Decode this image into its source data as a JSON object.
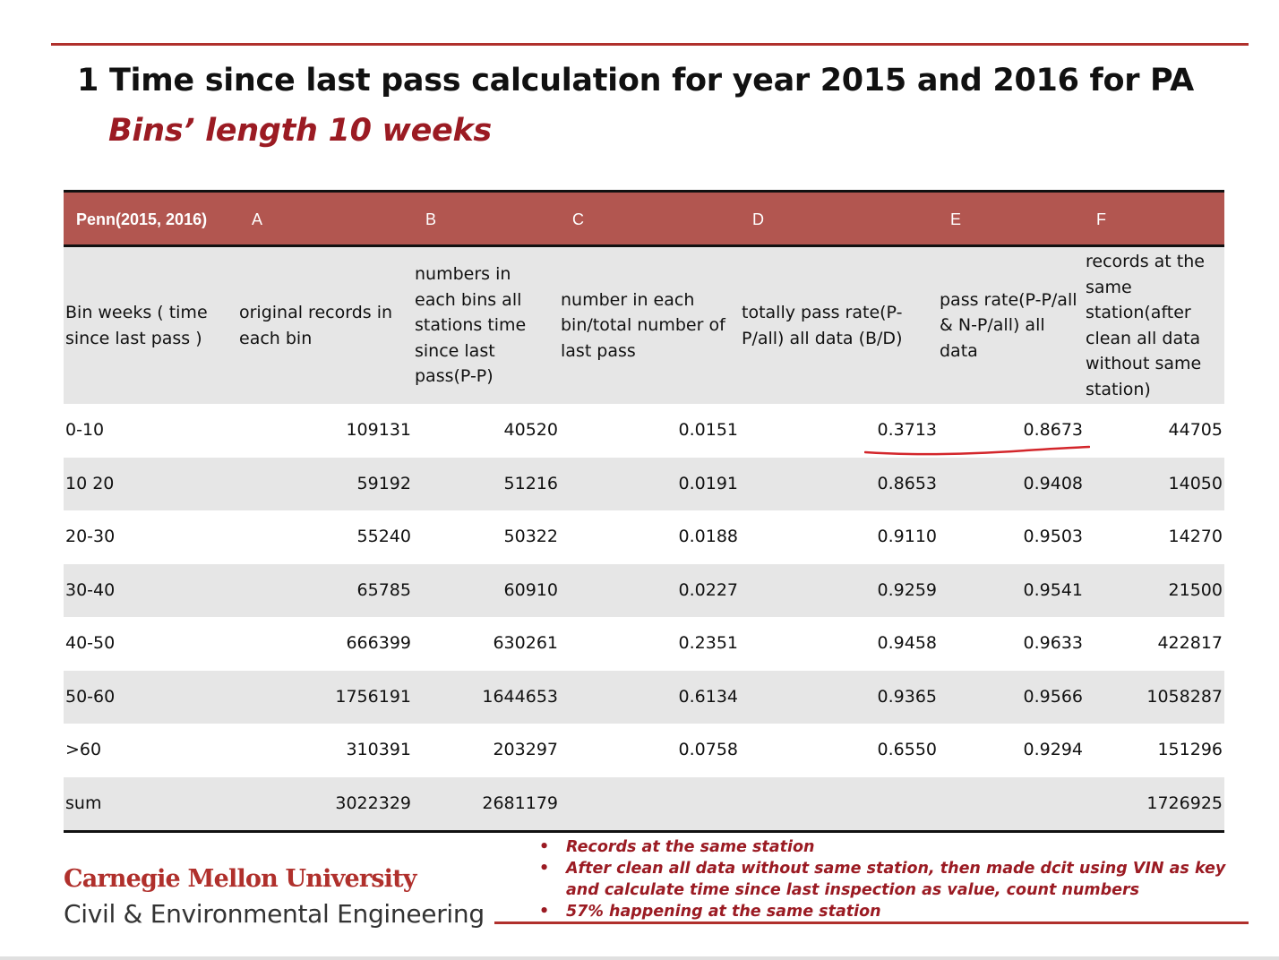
{
  "title": "1 Time since last pass calculation for year 2015 and 2016 for PA",
  "subtitle": "Bins’ length 10 weeks",
  "table": {
    "header_letters": [
      "Penn(2015, 2016)",
      "A",
      "B",
      "C",
      "D",
      "E",
      "F"
    ],
    "column_descriptions": [
      "Bin weeks ( time since last pass )",
      "original records in each bin",
      "numbers in each bins all stations time since last pass(P-P)",
      "number in each bin/total number of last pass",
      "totally pass rate(P-P/all) all data (B/D)",
      "pass rate(P-P/all & N-P/all) all data",
      "records at the same station(after clean all data without same station)"
    ],
    "rows": [
      {
        "bin": "0-10",
        "a": "109131",
        "b": "40520",
        "c": "0.0151",
        "d": "0.3713",
        "e": "0.8673",
        "f": "44705"
      },
      {
        "bin": "10 20",
        "a": "59192",
        "b": "51216",
        "c": "0.0191",
        "d": "0.8653",
        "e": "0.9408",
        "f": "14050"
      },
      {
        "bin": "20-30",
        "a": "55240",
        "b": "50322",
        "c": "0.0188",
        "d": "0.9110",
        "e": "0.9503",
        "f": "14270"
      },
      {
        "bin": "30-40",
        "a": "65785",
        "b": "60910",
        "c": "0.0227",
        "d": "0.9259",
        "e": "0.9541",
        "f": "21500"
      },
      {
        "bin": "40-50",
        "a": "666399",
        "b": "630261",
        "c": "0.2351",
        "d": "0.9458",
        "e": "0.9633",
        "f": "422817"
      },
      {
        "bin": "50-60",
        "a": "1756191",
        "b": "1644653",
        "c": "0.6134",
        "d": "0.9365",
        "e": "0.9566",
        "f": "1058287"
      },
      {
        "bin": ">60",
        "a": "310391",
        "b": "203297",
        "c": "0.0758",
        "d": "0.6550",
        "e": "0.9294",
        "f": "151296"
      },
      {
        "bin": "sum",
        "a": "3022329",
        "b": "2681179",
        "c": "",
        "d": "",
        "e": "",
        "f": "1726925"
      }
    ]
  },
  "notes": [
    "Records at the same station",
    "After clean all data without same station, then made dcit using VIN as key and calculate time since last inspection as value, count numbers",
    "57% happening at the same station"
  ],
  "footer": {
    "university": "Carnegie Mellon University",
    "department": "Civil & Environmental Engineering"
  },
  "colors": {
    "accent_red": "#b0302c",
    "header_band": "#b25650",
    "subtitle_red": "#9b1b23",
    "row_alt_gray": "#e6e6e6"
  }
}
